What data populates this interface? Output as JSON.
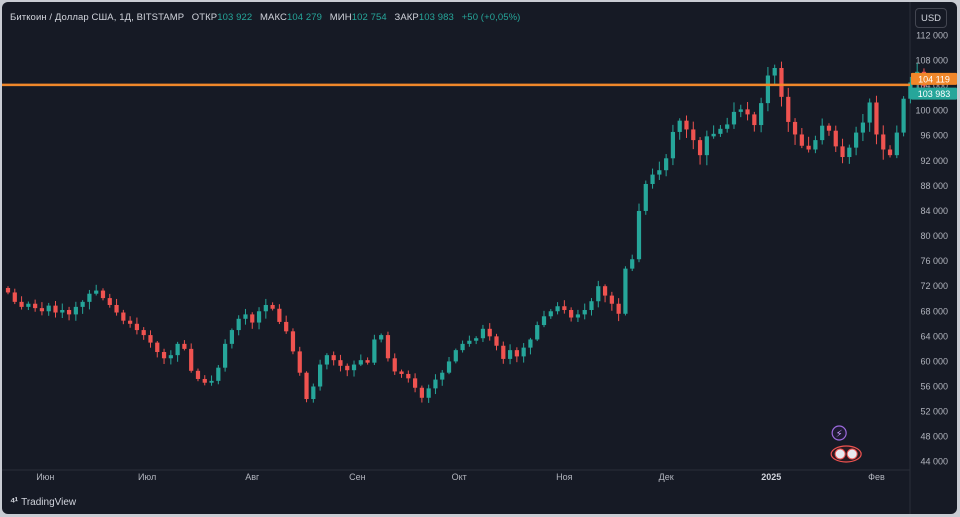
{
  "legend": {
    "symbol": "Биткоин / Доллар США, 1Д, BITSTAMP",
    "open_label": "ОТКР",
    "open": "103 922",
    "high_label": "МАКС",
    "high": "104 279",
    "low_label": "МИН",
    "low": "102 754",
    "close_label": "ЗАКР",
    "close": "103 983",
    "change": "+50 (+0,05%)"
  },
  "currency_button": "USD",
  "brand": "TradingView",
  "colors": {
    "up": "#26a69a",
    "down": "#ef5350",
    "level_line": "#f0872a",
    "background": "#161a25"
  },
  "chart_data": {
    "type": "candlestick",
    "title": "",
    "y_ticks": [
      44000,
      48000,
      52000,
      56000,
      60000,
      64000,
      68000,
      72000,
      76000,
      80000,
      84000,
      88000,
      92000,
      96000,
      100000,
      104000,
      108000,
      112000
    ],
    "y_tick_labels": [
      "44 000",
      "48 000",
      "52 000",
      "56 000",
      "60 000",
      "64 000",
      "68 000",
      "72 000",
      "76 000",
      "80 000",
      "84 000",
      "88 000",
      "92 000",
      "96 000",
      "100 000",
      "104 000",
      "108 000",
      "112 000"
    ],
    "ylim": [
      43000,
      113500
    ],
    "x_labels": [
      "Июн",
      "Июл",
      "Авг",
      "Сен",
      "Окт",
      "Ноя",
      "Дек",
      "2025",
      "Фев"
    ],
    "x_label_dates": [
      "2024-06-01",
      "2024-07-01",
      "2024-08-01",
      "2024-09-01",
      "2024-10-01",
      "2024-11-01",
      "2024-12-01",
      "2025-01-01",
      "2025-02-01"
    ],
    "x_range": [
      "2024-05-21",
      "2025-02-10"
    ],
    "horizontal_level": 104119,
    "price_labels": [
      {
        "value": 104119,
        "text": "104 119",
        "color": "#f0872a"
      },
      {
        "value": 103983,
        "text": "103 983",
        "color": "#26a69a"
      }
    ],
    "close_series": {
      "start_date": "2024-05-21",
      "step_days": 2,
      "values": [
        71000,
        69500,
        68700,
        69200,
        68500,
        68000,
        68900,
        67800,
        68200,
        67500,
        68700,
        69500,
        70800,
        71300,
        70100,
        69000,
        67800,
        66500,
        66000,
        65000,
        64200,
        63000,
        61500,
        60500,
        61000,
        62800,
        62000,
        58500,
        57200,
        56600,
        56900,
        59000,
        62800,
        65000,
        66800,
        67500,
        66200,
        68000,
        69000,
        68400,
        66300,
        64800,
        61600,
        58200,
        54000,
        56000,
        59500,
        61000,
        60200,
        59300,
        58600,
        59500,
        60200,
        59800,
        63500,
        64200,
        60500,
        58400,
        58000,
        57300,
        55800,
        54200,
        55700,
        57100,
        58200,
        60000,
        61800,
        62800,
        63300,
        63700,
        65200,
        64000,
        62500,
        60400,
        61800,
        60800,
        62200,
        63500,
        65800,
        67200,
        68000,
        68800,
        68200,
        67000,
        67500,
        68200,
        69600,
        72000,
        70500,
        69200,
        67600,
        74800,
        76300,
        84000,
        88300,
        89800,
        90500,
        92400,
        96600,
        98400,
        97000,
        95300,
        92900,
        95900,
        96300,
        97100,
        97800,
        99800,
        100200,
        99400,
        97700,
        101200,
        105600,
        106800,
        102200,
        98200,
        96200,
        94400,
        93800,
        95300,
        97600,
        96800,
        94300,
        92600,
        94100,
        96500,
        98100,
        101300,
        96200,
        93800,
        92900,
        96500,
        101900,
        104500,
        106200,
        103983
      ]
    }
  }
}
